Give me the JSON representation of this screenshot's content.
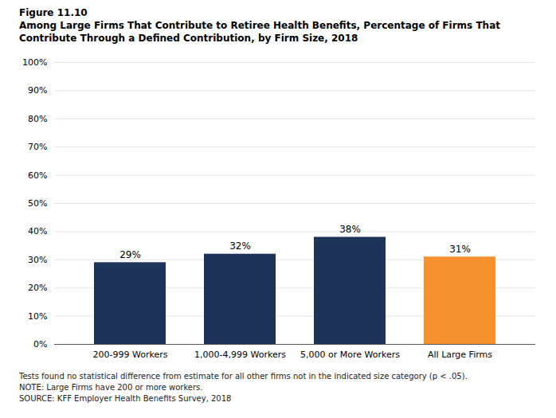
{
  "chart_data": {
    "type": "bar",
    "title": "Figure 11.10\nAmong Large Firms That Contribute to Retiree Health Benefits, Percentage of Firms That\nContribute Through a Defined Contribution, by Firm Size, 2018",
    "categories": [
      "200-999 Workers",
      "1,000-4,999 Workers",
      "5,000 or More Workers",
      "All Large Firms"
    ],
    "values": [
      29,
      32,
      38,
      31
    ],
    "value_labels": [
      "29%",
      "32%",
      "38%",
      "31%"
    ],
    "colors": [
      "#1e3358",
      "#1e3358",
      "#1e3358",
      "#f5922e"
    ],
    "ylim": [
      0,
      100
    ],
    "yticks": [
      {
        "value": 0,
        "label": "0%"
      },
      {
        "value": 10,
        "label": "10%"
      },
      {
        "value": 20,
        "label": "20%"
      },
      {
        "value": 30,
        "label": "30%"
      },
      {
        "value": 40,
        "label": "40%"
      },
      {
        "value": 50,
        "label": "50%"
      },
      {
        "value": 60,
        "label": "60%"
      },
      {
        "value": 70,
        "label": "70%"
      },
      {
        "value": 80,
        "label": "80%"
      },
      {
        "value": 90,
        "label": "90%"
      },
      {
        "value": 100,
        "label": "100%"
      }
    ],
    "grid": true,
    "data_labels": true,
    "annotations": [
      "Tests found no statistical difference from estimate for all other firms not in the indicated size category (p < .05).",
      "NOTE: Large Firms have 200 or more workers.",
      "SOURCE: KFF Employer Health Benefits Survey, 2018"
    ]
  }
}
